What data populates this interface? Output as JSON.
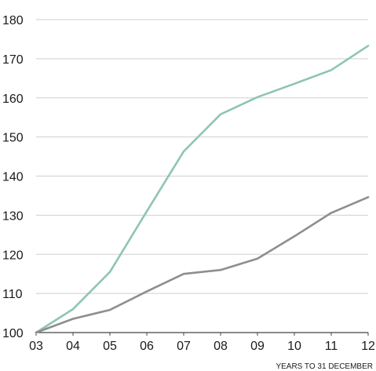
{
  "chart_data": {
    "type": "line",
    "title": "",
    "xlabel": "YEARS TO 31 DECEMBER",
    "ylabel": "",
    "categories": [
      "03",
      "04",
      "05",
      "06",
      "07",
      "08",
      "09",
      "10",
      "11",
      "12"
    ],
    "yticks": [
      "100",
      "110",
      "120",
      "130",
      "140",
      "150",
      "160",
      "170",
      "180"
    ],
    "ylim": [
      100,
      180
    ],
    "grid": true,
    "legend": "none",
    "series": [
      {
        "color": "#8fc4b3",
        "values": [
          100,
          106,
          115.5,
          131,
          146.3,
          155.8,
          160.2,
          163.6,
          167.1,
          173.3
        ]
      },
      {
        "color": "#8e8e8e",
        "values": [
          100,
          103.5,
          105.8,
          110.5,
          115,
          116,
          118.9,
          124.6,
          130.6,
          134.6
        ]
      }
    ],
    "colors": {
      "grid": "#cfcfcf",
      "axis": "#444444",
      "text": "#1a1a1a"
    }
  }
}
